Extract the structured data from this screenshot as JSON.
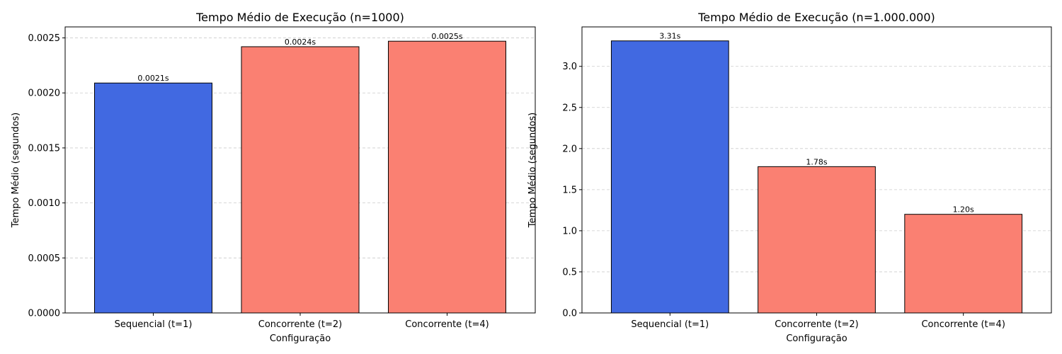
{
  "chart_data": [
    {
      "type": "bar",
      "title": "Tempo Médio de Execução (n=1000)",
      "xlabel": "Configuração",
      "ylabel": "Tempo Médio (segundos)",
      "categories": [
        "Sequencial (t=1)",
        "Concorrente (t=2)",
        "Concorrente (t=4)"
      ],
      "values": [
        0.00209,
        0.00242,
        0.00247
      ],
      "value_labels": [
        "0.0021s",
        "0.0024s",
        "0.0025s"
      ],
      "bar_colors": [
        "#4169e1",
        "#fa8072",
        "#fa8072"
      ],
      "ylim": [
        0,
        0.0026
      ],
      "yticks": [
        0,
        0.0005,
        0.001,
        0.0015,
        0.002,
        0.0025
      ],
      "ytick_labels": [
        "0.0000",
        "0.0005",
        "0.0010",
        "0.0015",
        "0.0020",
        "0.0025"
      ],
      "grid": "y-dashed"
    },
    {
      "type": "bar",
      "title": "Tempo Médio de Execução (n=1.000.000)",
      "xlabel": "Configuração",
      "ylabel": "Tempo Médio (segundos)",
      "categories": [
        "Sequencial (t=1)",
        "Concorrente (t=2)",
        "Concorrente (t=4)"
      ],
      "values": [
        3.31,
        1.78,
        1.2
      ],
      "value_labels": [
        "3.31s",
        "1.78s",
        "1.20s"
      ],
      "bar_colors": [
        "#4169e1",
        "#fa8072",
        "#fa8072"
      ],
      "ylim": [
        0,
        3.48
      ],
      "yticks": [
        0,
        0.5,
        1.0,
        1.5,
        2.0,
        2.5,
        3.0
      ],
      "ytick_labels": [
        "0.0",
        "0.5",
        "1.0",
        "1.5",
        "2.0",
        "2.5",
        "3.0"
      ],
      "grid": "y-dashed"
    }
  ]
}
